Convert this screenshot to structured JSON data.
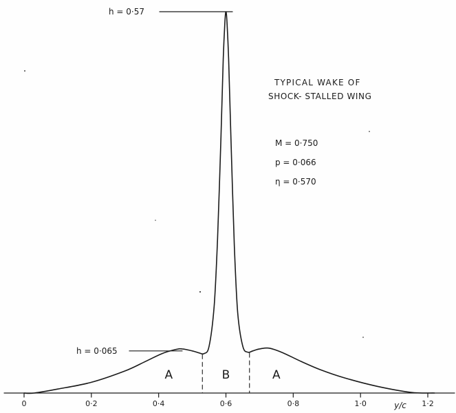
{
  "chart_data": {
    "type": "line",
    "title": "TYPICAL WAKE OF SHOCK- STALLED WING",
    "title_lines": [
      "TYPICAL WAKE OF",
      "SHOCK- STALLED WING"
    ],
    "xlabel": "y/c",
    "ylabel": "",
    "xlim": [
      0,
      1.22
    ],
    "ylim": [
      0,
      0.57
    ],
    "x_ticks": [
      0,
      0.2,
      0.4,
      0.6,
      0.8,
      1.0,
      1.2
    ],
    "x_tick_labels": [
      "0",
      "0·2",
      "0·4",
      "0·6",
      "0·8",
      "1·0",
      "1·2"
    ],
    "grid": false,
    "series": [
      {
        "x": [
          0.0,
          0.03,
          0.1,
          0.2,
          0.3,
          0.36,
          0.41,
          0.45,
          0.47,
          0.5,
          0.52,
          0.535,
          0.55,
          0.565,
          0.575,
          0.585,
          0.592,
          0.597,
          0.6,
          0.603,
          0.608,
          0.615,
          0.625,
          0.635,
          0.65,
          0.665,
          0.68,
          0.7,
          0.73,
          0.77,
          0.82,
          0.88,
          0.95,
          1.05,
          1.15,
          1.22
        ],
        "y": [
          0.0,
          0.0,
          0.006,
          0.016,
          0.033,
          0.047,
          0.059,
          0.065,
          0.066,
          0.063,
          0.06,
          0.059,
          0.07,
          0.13,
          0.23,
          0.38,
          0.5,
          0.555,
          0.57,
          0.555,
          0.5,
          0.38,
          0.22,
          0.12,
          0.07,
          0.061,
          0.063,
          0.066,
          0.067,
          0.06,
          0.048,
          0.035,
          0.023,
          0.01,
          0.001,
          0.0
        ]
      }
    ],
    "annotations": [
      {
        "text": "h = 0·57",
        "x": 0.6,
        "y": 0.57
      },
      {
        "text": "h = 0·065",
        "x": 0.47,
        "y": 0.065
      },
      {
        "text": "M = 0·750"
      },
      {
        "text": "p = 0·066"
      },
      {
        "text": "η = 0·570"
      }
    ],
    "regions": [
      {
        "label": "A",
        "x_from": 0.0,
        "x_to": 0.53
      },
      {
        "label": "B",
        "x_from": 0.53,
        "x_to": 0.67
      },
      {
        "label": "A",
        "x_from": 0.67,
        "x_to": 1.22
      }
    ],
    "region_dividers": [
      0.53,
      0.67
    ]
  }
}
